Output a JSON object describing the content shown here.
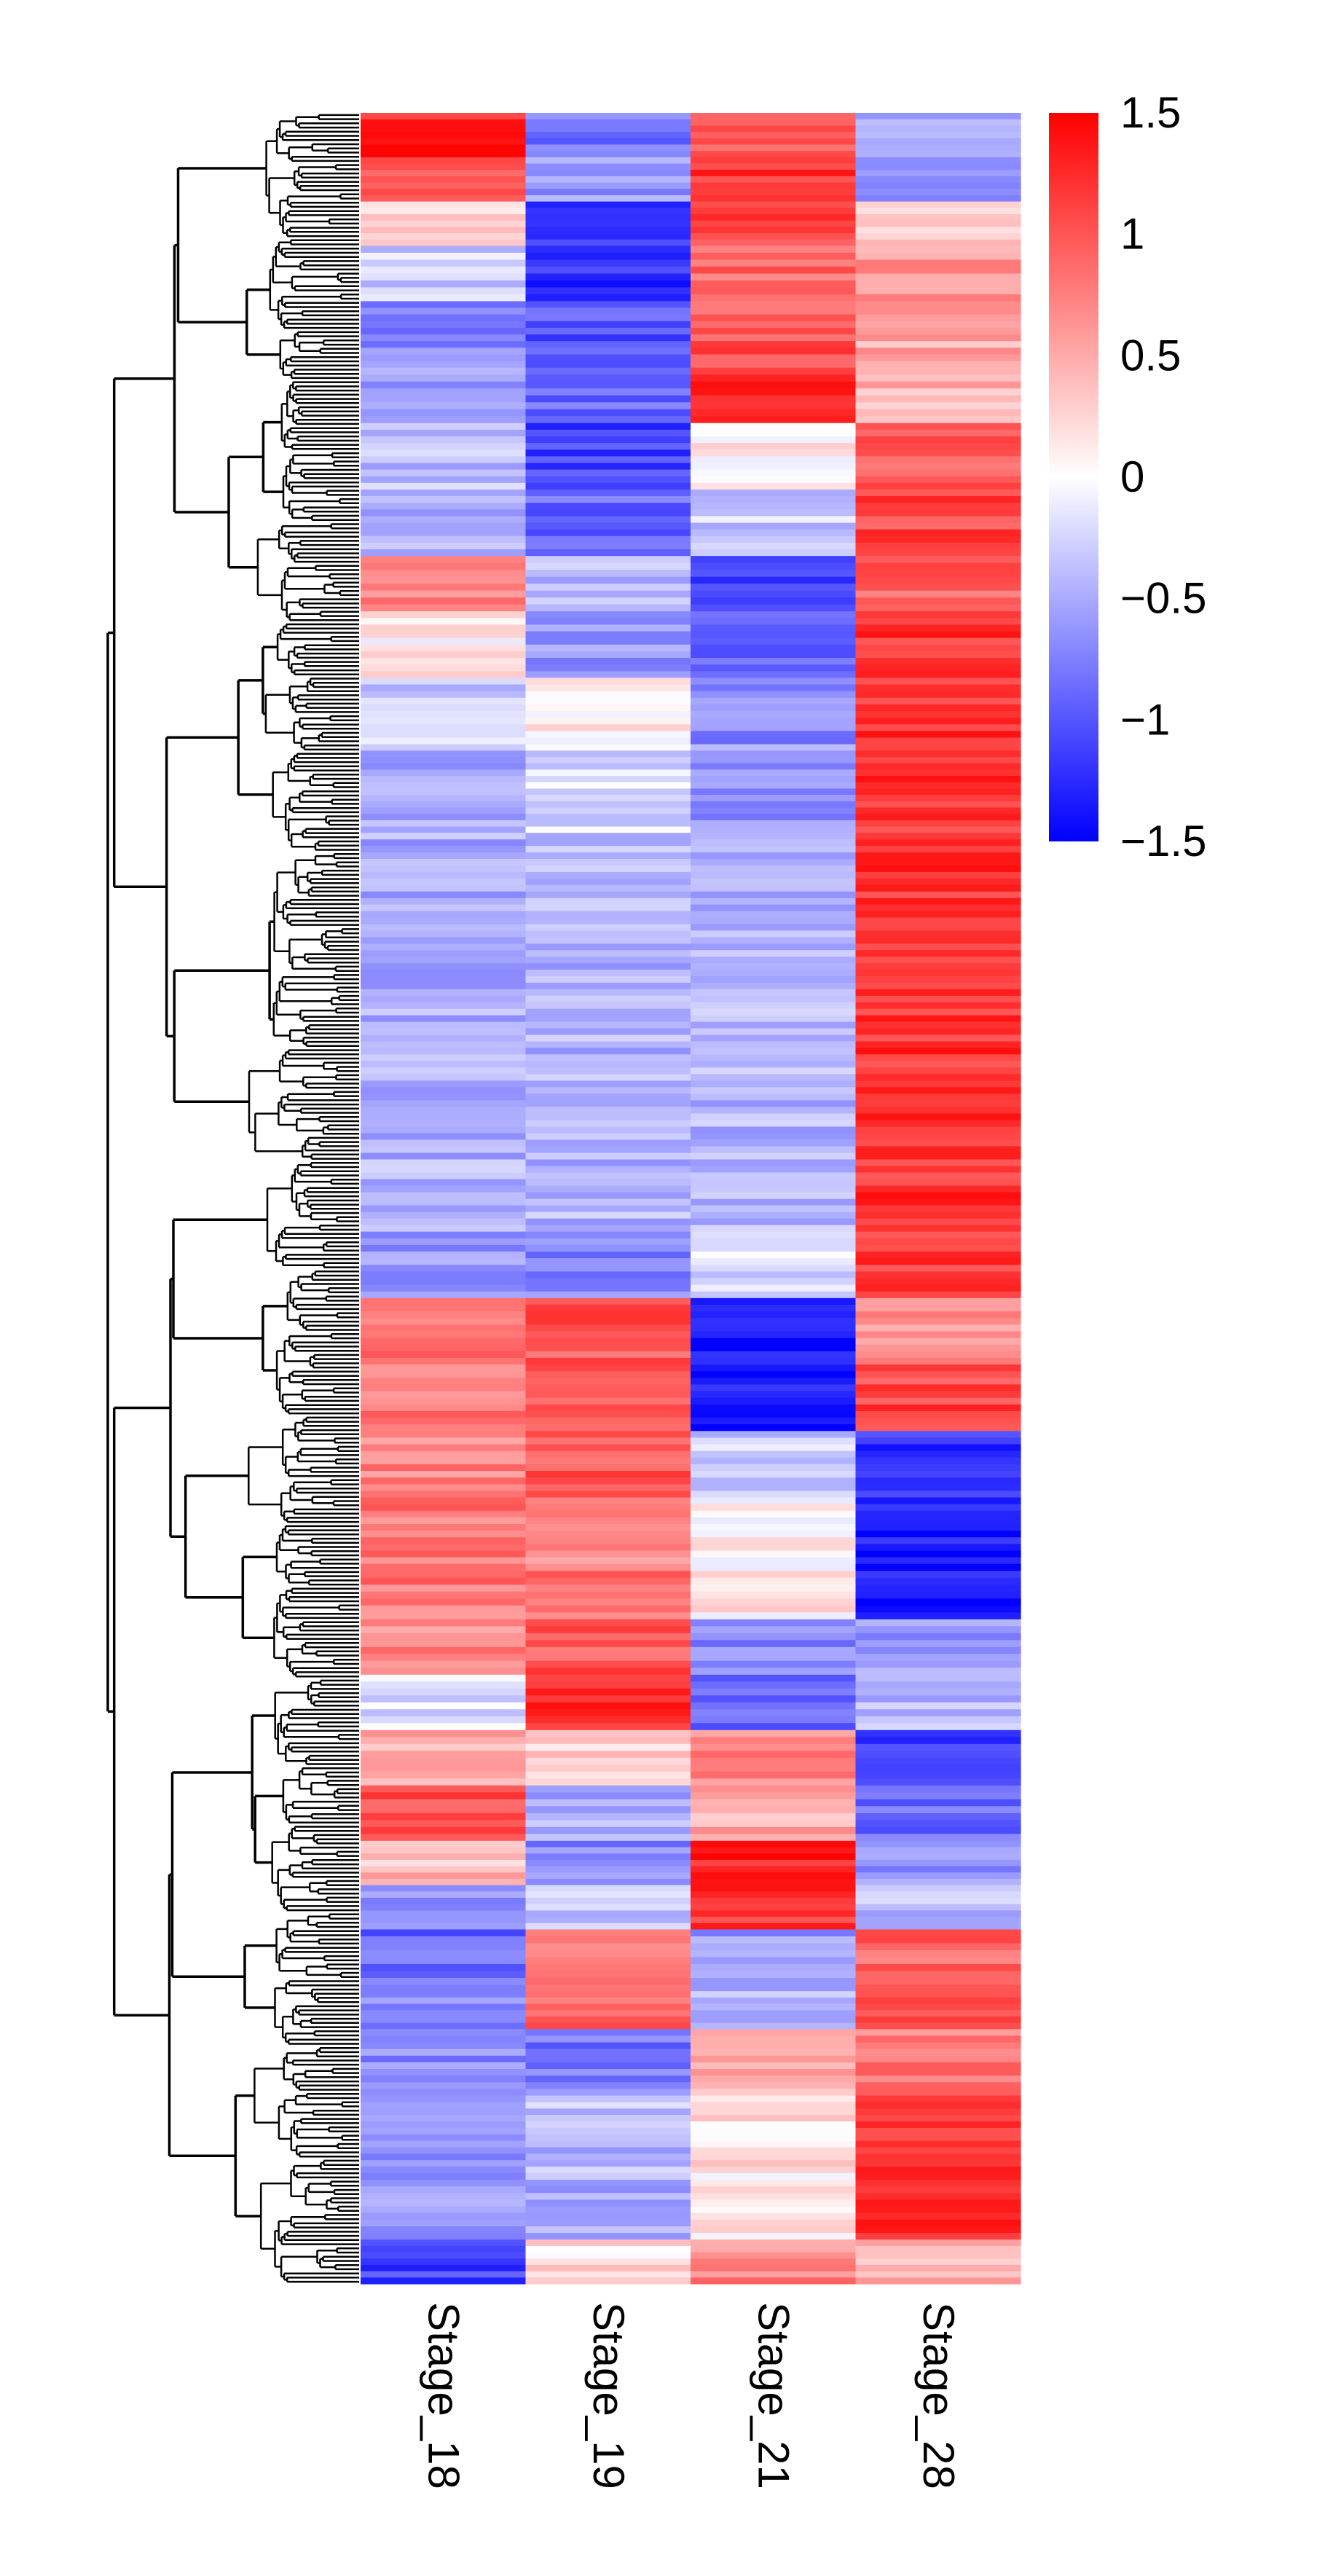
{
  "chart_data": {
    "type": "heatmap",
    "title": "",
    "columns": [
      "Stage_18",
      "Stage_19",
      "Stage_21",
      "Stage_28"
    ],
    "row_dendrogram": true,
    "color_scale": {
      "min": -1.5,
      "mid": 0,
      "max": 1.5,
      "low_color": "#0000ff",
      "mid_color": "#ffffff",
      "high_color": "#ff0000",
      "ticks": [
        1.5,
        1,
        0.5,
        0,
        -0.5,
        -1,
        -1.5
      ],
      "tick_labels": [
        "1.5",
        "1",
        "0.5",
        "0",
        "−0.5",
        "−1",
        "−1.5"
      ]
    },
    "row_blocks": [
      {
        "weight": 2.0,
        "values": [
          1.3,
          -0.8,
          1.0,
          -0.5
        ]
      },
      {
        "weight": 2.0,
        "values": [
          0.9,
          -0.6,
          1.2,
          -0.6
        ]
      },
      {
        "weight": 2.0,
        "values": [
          0.2,
          -1.2,
          1.1,
          0.3
        ]
      },
      {
        "weight": 2.5,
        "values": [
          -0.3,
          -1.2,
          0.9,
          0.6
        ]
      },
      {
        "weight": 3.0,
        "values": [
          -0.7,
          -1.0,
          1.0,
          0.5
        ]
      },
      {
        "weight": 2.5,
        "values": [
          -0.6,
          -0.9,
          1.2,
          0.4
        ]
      },
      {
        "weight": 3.0,
        "values": [
          -0.4,
          -1.1,
          0.1,
          1.0
        ]
      },
      {
        "weight": 3.0,
        "values": [
          -0.5,
          -0.9,
          -0.3,
          1.1
        ]
      },
      {
        "weight": 2.5,
        "values": [
          0.7,
          -0.4,
          -1.2,
          0.9
        ]
      },
      {
        "weight": 3.0,
        "values": [
          0.1,
          -0.6,
          -0.9,
          1.2
        ]
      },
      {
        "weight": 3.0,
        "values": [
          -0.3,
          0.1,
          -0.7,
          1.2
        ]
      },
      {
        "weight": 4.0,
        "values": [
          -0.5,
          -0.2,
          -0.6,
          1.2
        ]
      },
      {
        "weight": 5.0,
        "values": [
          -0.5,
          -0.4,
          -0.5,
          1.2
        ]
      },
      {
        "weight": 5.0,
        "values": [
          -0.5,
          -0.45,
          -0.45,
          1.2
        ]
      },
      {
        "weight": 8.0,
        "values": [
          -0.45,
          -0.45,
          -0.45,
          1.2
        ]
      },
      {
        "weight": 3.0,
        "values": [
          -0.6,
          -0.7,
          -0.2,
          1.2
        ]
      },
      {
        "weight": 3.0,
        "values": [
          0.8,
          1.0,
          -1.4,
          0.6
        ]
      },
      {
        "weight": 3.0,
        "values": [
          0.8,
          1.0,
          -1.3,
          1.1
        ]
      },
      {
        "weight": 3.0,
        "values": [
          0.7,
          1.0,
          -0.3,
          -1.2
        ]
      },
      {
        "weight": 3.0,
        "values": [
          0.8,
          0.7,
          0.1,
          -1.3
        ]
      },
      {
        "weight": 2.5,
        "values": [
          0.8,
          0.8,
          0.1,
          -1.3
        ]
      },
      {
        "weight": 2.5,
        "values": [
          0.7,
          1.0,
          -0.7,
          -0.6
        ]
      },
      {
        "weight": 2.5,
        "values": [
          -0.2,
          1.3,
          -0.9,
          -0.4
        ]
      },
      {
        "weight": 2.5,
        "values": [
          0.5,
          0.3,
          0.7,
          -1.2
        ]
      },
      {
        "weight": 2.5,
        "values": [
          1.1,
          -0.5,
          0.5,
          -0.9
        ]
      },
      {
        "weight": 2.0,
        "values": [
          0.4,
          -0.7,
          1.3,
          -0.6
        ]
      },
      {
        "weight": 2.0,
        "values": [
          -0.6,
          -0.3,
          1.2,
          -0.4
        ]
      },
      {
        "weight": 2.5,
        "values": [
          -0.9,
          0.8,
          -0.6,
          0.9
        ]
      },
      {
        "weight": 2.0,
        "values": [
          -0.7,
          0.9,
          -0.4,
          1.0
        ]
      },
      {
        "weight": 3.0,
        "values": [
          -0.7,
          -0.8,
          0.5,
          0.8
        ]
      },
      {
        "weight": 3.5,
        "values": [
          -0.7,
          -0.4,
          0.2,
          1.2
        ]
      },
      {
        "weight": 3.0,
        "values": [
          -0.6,
          -0.5,
          0.1,
          1.2
        ]
      },
      {
        "weight": 2.0,
        "values": [
          -1.1,
          0.2,
          0.7,
          0.4
        ]
      }
    ]
  }
}
